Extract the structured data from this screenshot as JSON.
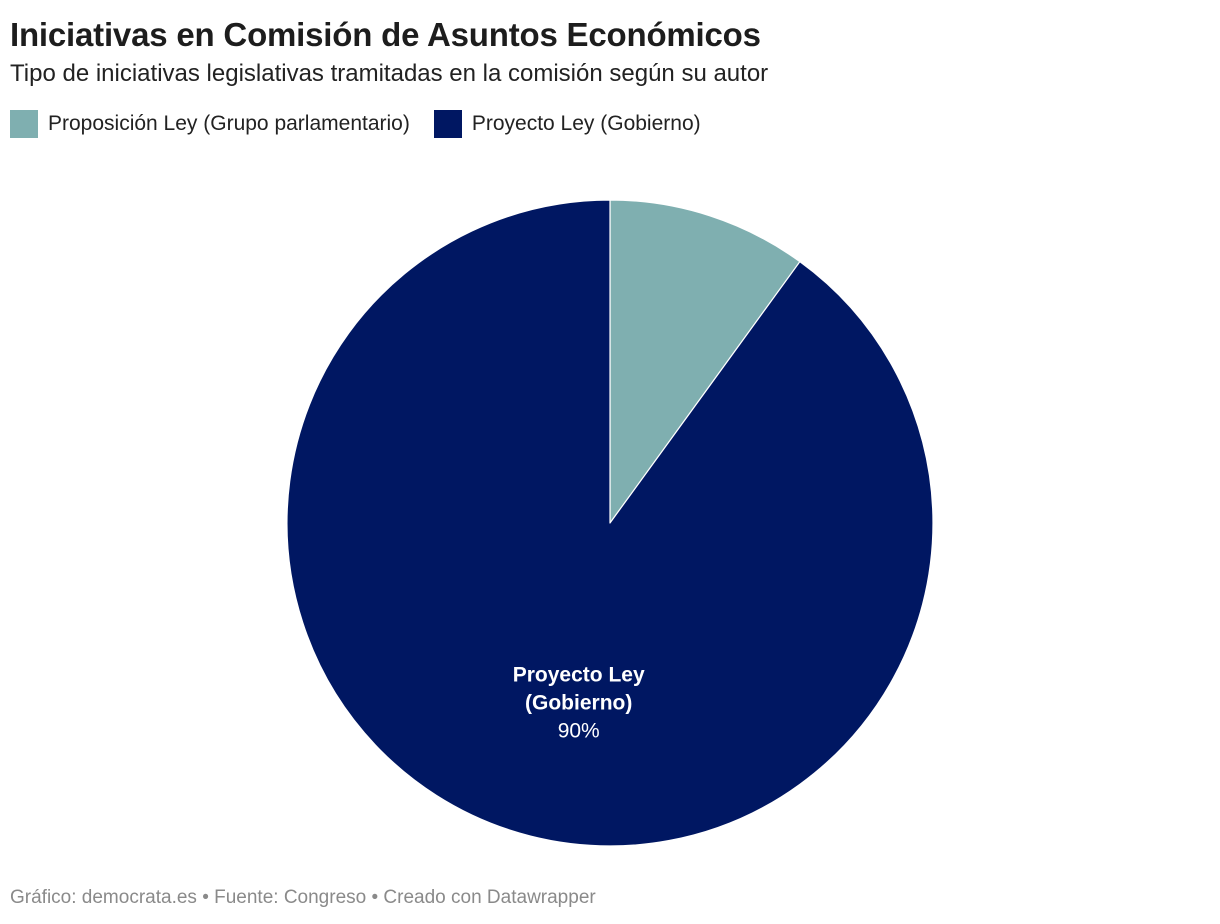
{
  "header": {
    "title": "Iniciativas en Comisión de Asuntos Económicos",
    "subtitle": "Tipo de iniciativas legislativas tramitadas en la comisión según su autor"
  },
  "legend": [
    {
      "label": "Proposición Ley (Grupo parlamentario)",
      "color": "#7fafb0"
    },
    {
      "label": "Proyecto Ley (Gobierno)",
      "color": "#001762"
    }
  ],
  "chart_data": {
    "type": "pie",
    "title": "Iniciativas en Comisión de Asuntos Económicos",
    "subtitle": "Tipo de iniciativas legislativas tramitadas en la comisión según su autor",
    "slices": [
      {
        "label": "Proposición Ley (Grupo parlamentario)",
        "value": 10,
        "color": "#7fafb0",
        "data_label": ""
      },
      {
        "label": "Proyecto Ley (Gobierno)",
        "value": 90,
        "color": "#001762",
        "data_label": "90%",
        "label_lines": [
          "Proyecto Ley",
          "(Gobierno)"
        ]
      }
    ],
    "legend_position": "top-left",
    "start": "top",
    "direction": "clockwise"
  },
  "footer": {
    "text": "Gráfico: democrata.es • Fuente: Congreso • Creado con Datawrapper"
  }
}
